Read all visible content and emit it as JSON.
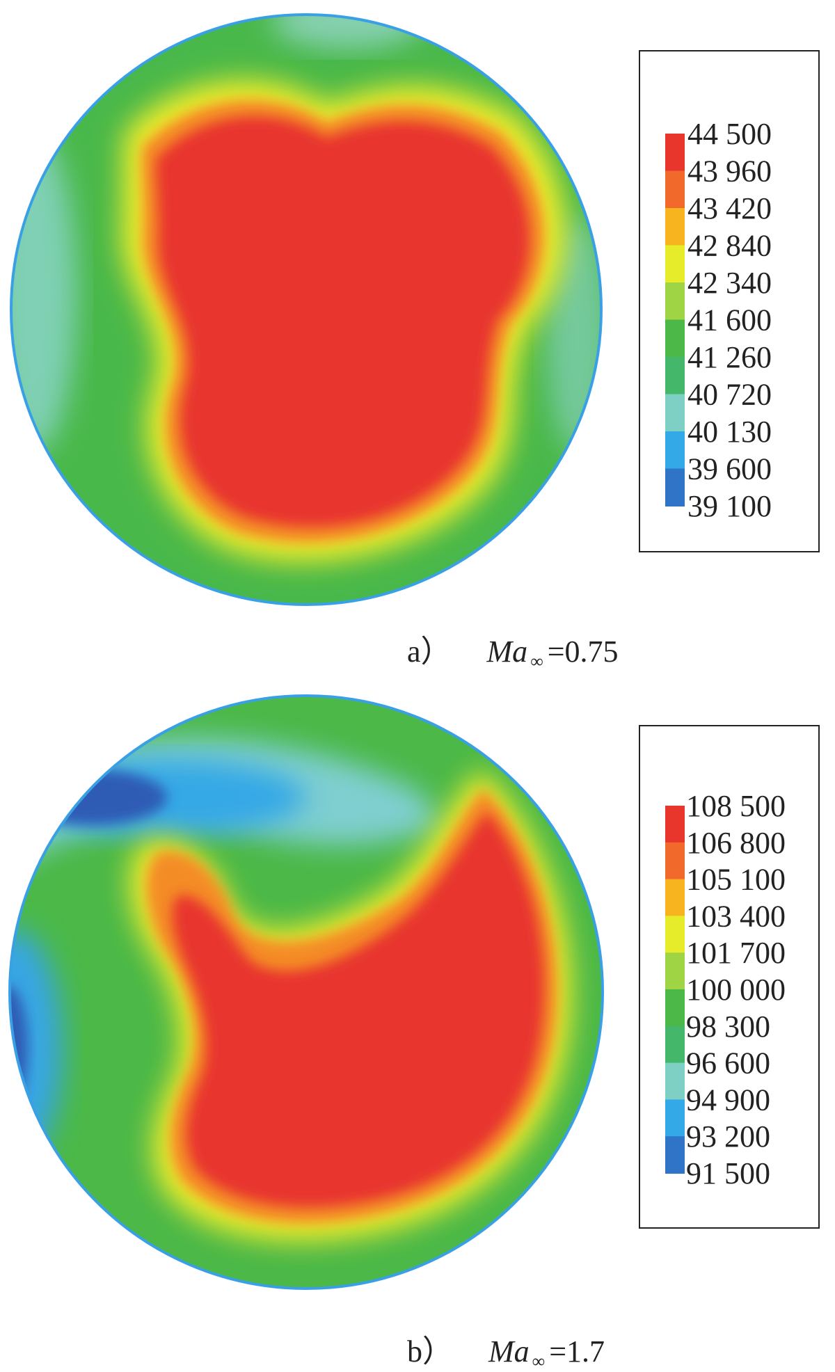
{
  "chart_data": [
    {
      "type": "heatmap",
      "panel_label": "a）",
      "caption_symbol": "Ma",
      "caption_subscript": "∞",
      "caption_value": "=0.75",
      "colorbar": {
        "ticks": [
          "44 500",
          "43 960",
          "43 420",
          "42 840",
          "42 340",
          "41 600",
          "41 260",
          "40 720",
          "40 130",
          "39 600",
          "39 100"
        ],
        "min": 39100,
        "max": 44500,
        "colors_top_to_bottom": [
          "#e8362d",
          "#f16a2c",
          "#f8b41e",
          "#e6ec2a",
          "#9fd445",
          "#4bb848",
          "#44b76a",
          "#7ed0c4",
          "#34a9e8",
          "#2f74c7",
          "#2b3e96"
        ]
      }
    },
    {
      "type": "heatmap",
      "panel_label": "b）",
      "caption_symbol": "Ma",
      "caption_subscript": "∞",
      "caption_value": "=1.7",
      "colorbar": {
        "ticks": [
          "108 500",
          "106 800",
          "105 100",
          "103 400",
          "101 700",
          "100 000",
          "98 300",
          "96 600",
          "94 900",
          "93 200",
          "91 500"
        ],
        "min": 91500,
        "max": 108500,
        "colors_top_to_bottom": [
          "#e8362d",
          "#f16a2c",
          "#f8b41e",
          "#e6ec2a",
          "#9fd445",
          "#4bb848",
          "#44b76a",
          "#7ed0c4",
          "#34a9e8",
          "#2f74c7",
          "#2b3e96"
        ]
      }
    }
  ]
}
